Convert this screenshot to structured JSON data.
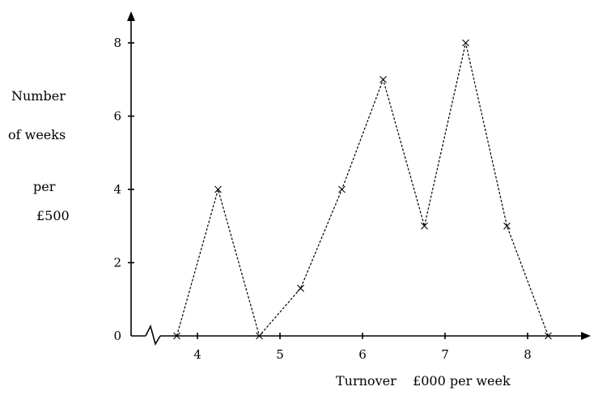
{
  "chart_data": {
    "type": "line",
    "title": "",
    "ylabel_lines": [
      "Number",
      "of weeks",
      "per",
      "£500"
    ],
    "xlabel": "Turnover    £000 per week",
    "x_ticks": [
      4,
      5,
      6,
      7,
      8
    ],
    "y_ticks": [
      0,
      2,
      4,
      6,
      8
    ],
    "y_tick_labels": [
      "0",
      "2",
      "4",
      "6",
      "8"
    ],
    "xlim": [
      3.0,
      8.7
    ],
    "ylim": [
      0,
      8.8
    ],
    "axis_break_on_x": true,
    "grid": false,
    "series": [
      {
        "x": [
          3.75,
          4.25,
          4.75,
          5.25,
          5.75,
          6.25,
          6.75,
          7.25,
          7.75,
          8.25
        ],
        "y": [
          0,
          4,
          0,
          1.3,
          4,
          7,
          3,
          8,
          3,
          0
        ],
        "marker": "x"
      }
    ]
  }
}
